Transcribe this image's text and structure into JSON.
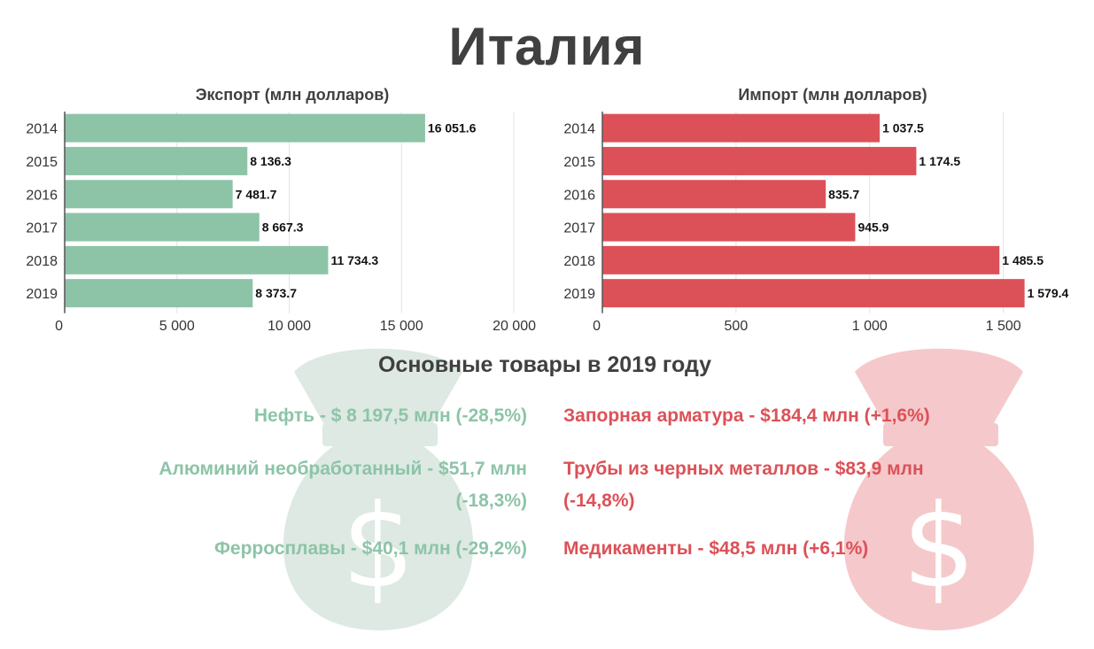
{
  "title": "Италия",
  "colors": {
    "export": "#8dc4a8",
    "import": "#dc5157",
    "export_bag": "#dde9e2",
    "import_bag": "#f5c9cb"
  },
  "icons": {
    "export_bag": "money-bag-icon",
    "import_bag": "money-bag-icon"
  },
  "chart_data": [
    {
      "type": "bar",
      "orientation": "horizontal",
      "title": "Экспорт (млн долларов)",
      "categories": [
        "2014",
        "2015",
        "2016",
        "2017",
        "2018",
        "2019"
      ],
      "values": [
        16051.6,
        8136.3,
        7481.7,
        8667.3,
        11734.3,
        8373.7
      ],
      "value_labels": [
        "16 051.6",
        "8 136.3",
        "7 481.7",
        "8 667.3",
        "11 734.3",
        "8 373.7"
      ],
      "xlim": [
        0,
        20000
      ],
      "ticks": [
        0,
        5000,
        10000,
        15000,
        20000
      ],
      "tick_labels": [
        "0",
        "5 000",
        "10 000",
        "15 000",
        "20 000"
      ],
      "grid": true,
      "color": "#8dc4a8"
    },
    {
      "type": "bar",
      "orientation": "horizontal",
      "title": "Импорт (млн долларов)",
      "categories": [
        "2014",
        "2015",
        "2016",
        "2017",
        "2018",
        "2019"
      ],
      "values": [
        1037.5,
        1174.5,
        835.7,
        945.9,
        1485.5,
        1579.4
      ],
      "value_labels": [
        "1 037.5",
        "1 174.5",
        "835.7",
        "945.9",
        "1 485.5",
        "1 579.4"
      ],
      "xlim": [
        0,
        1700
      ],
      "ticks": [
        0,
        500,
        1000,
        1500
      ],
      "tick_labels": [
        "0",
        "500",
        "1 000",
        "1 500"
      ],
      "grid": true,
      "color": "#dc5157"
    }
  ],
  "section_title": "Основные товары в 2019 году",
  "export_goods": [
    "Нефть - $ 8 197,5 млн (-28,5%)",
    "Алюминий необработанный - $51,7 млн (-18,3%)",
    "Ферросплавы - $40,1 млн (-29,2%)"
  ],
  "import_goods": [
    "Запорная арматура - $184,4 млн (+1,6%)",
    "Трубы из черных металлов - $83,9 млн (-14,8%)",
    "Медикаменты - $48,5 млн (+6,1%)"
  ]
}
